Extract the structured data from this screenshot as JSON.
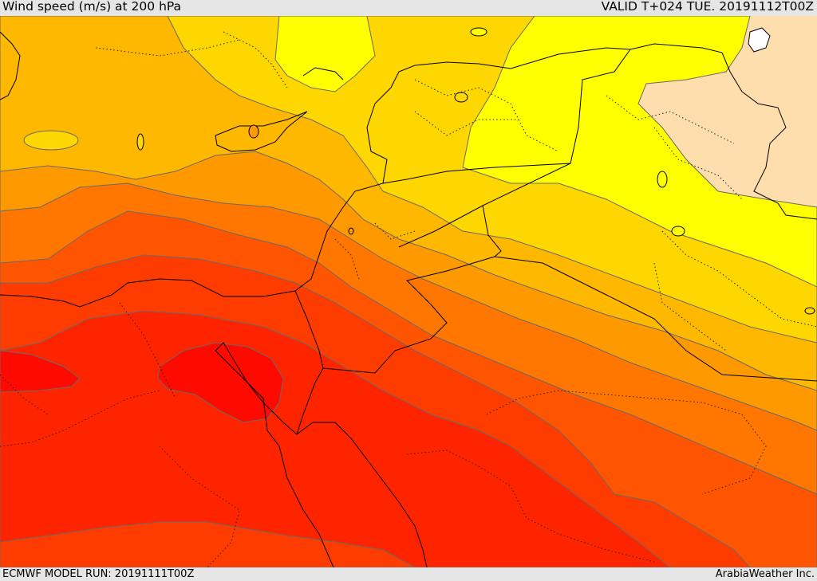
{
  "header": {
    "title": "Wind speed (m/s) at 200 hPa",
    "valid": "VALID T+024 TUE. 20191112T00Z"
  },
  "footer": {
    "model_run": "ECMWF MODEL RUN: 20191111T00Z",
    "credit": "ArabiaWeather Inc."
  },
  "colors": {
    "pale": "#ffdead",
    "yellow": "#ffff00",
    "gold": "#ffd700",
    "amber": "#ffb800",
    "orange": "#ff9900",
    "dark_orange": "#ff7700",
    "red_orange": "#ff5500",
    "light_red": "#ff3c00",
    "red": "#ff2400",
    "deep_red": "#ff0a00",
    "contour": "#6a6a6a",
    "border": "#000000"
  }
}
